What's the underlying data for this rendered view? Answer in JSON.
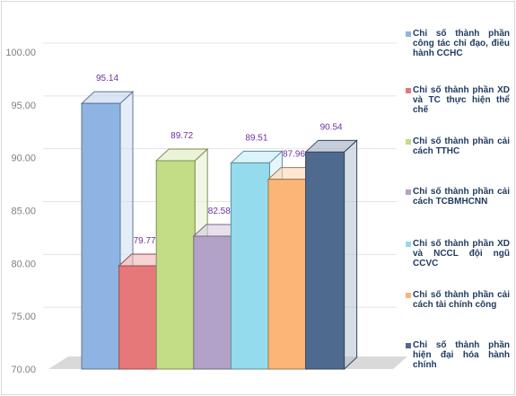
{
  "chart_data": {
    "type": "bar",
    "title": "",
    "xlabel": "",
    "ylabel": "",
    "ylim": [
      70,
      100
    ],
    "yticks": [
      "70.00",
      "75.00",
      "80.00",
      "85.00",
      "90.00",
      "95.00",
      "100.00"
    ],
    "grid": true,
    "legend_position": "right",
    "series": [
      {
        "name": "Chỉ số thành phần công tác chỉ đạo, điều hành CCHC",
        "value": 95.14,
        "label": "95.14",
        "color": "#8eb4e3"
      },
      {
        "name": "Chỉ số thành phần XD và TC thực hiện thể chế",
        "value": 79.77,
        "label": "79.77",
        "color": "#e6787a"
      },
      {
        "name": "Chỉ số thành phần cải cách TTHC",
        "value": 89.72,
        "label": "89.72",
        "color": "#c3dc86"
      },
      {
        "name": "Chỉ số thành phần cải cách TCBMHCNN",
        "value": 82.58,
        "label": "82.58",
        "color": "#b3a2c7"
      },
      {
        "name": "Chỉ số thành phần XD và NCCL đội ngũ CCVC",
        "value": 89.51,
        "label": "89.51",
        "color": "#93dbed"
      },
      {
        "name": "Chỉ số thành phần cải cách tài chính công",
        "value": 87.96,
        "label": "87.96",
        "color": "#fbb576"
      },
      {
        "name": "Chỉ số thành phần hiện đại hóa hành chính",
        "value": 90.54,
        "label": "90.54",
        "color": "#4f6a8f"
      }
    ]
  }
}
